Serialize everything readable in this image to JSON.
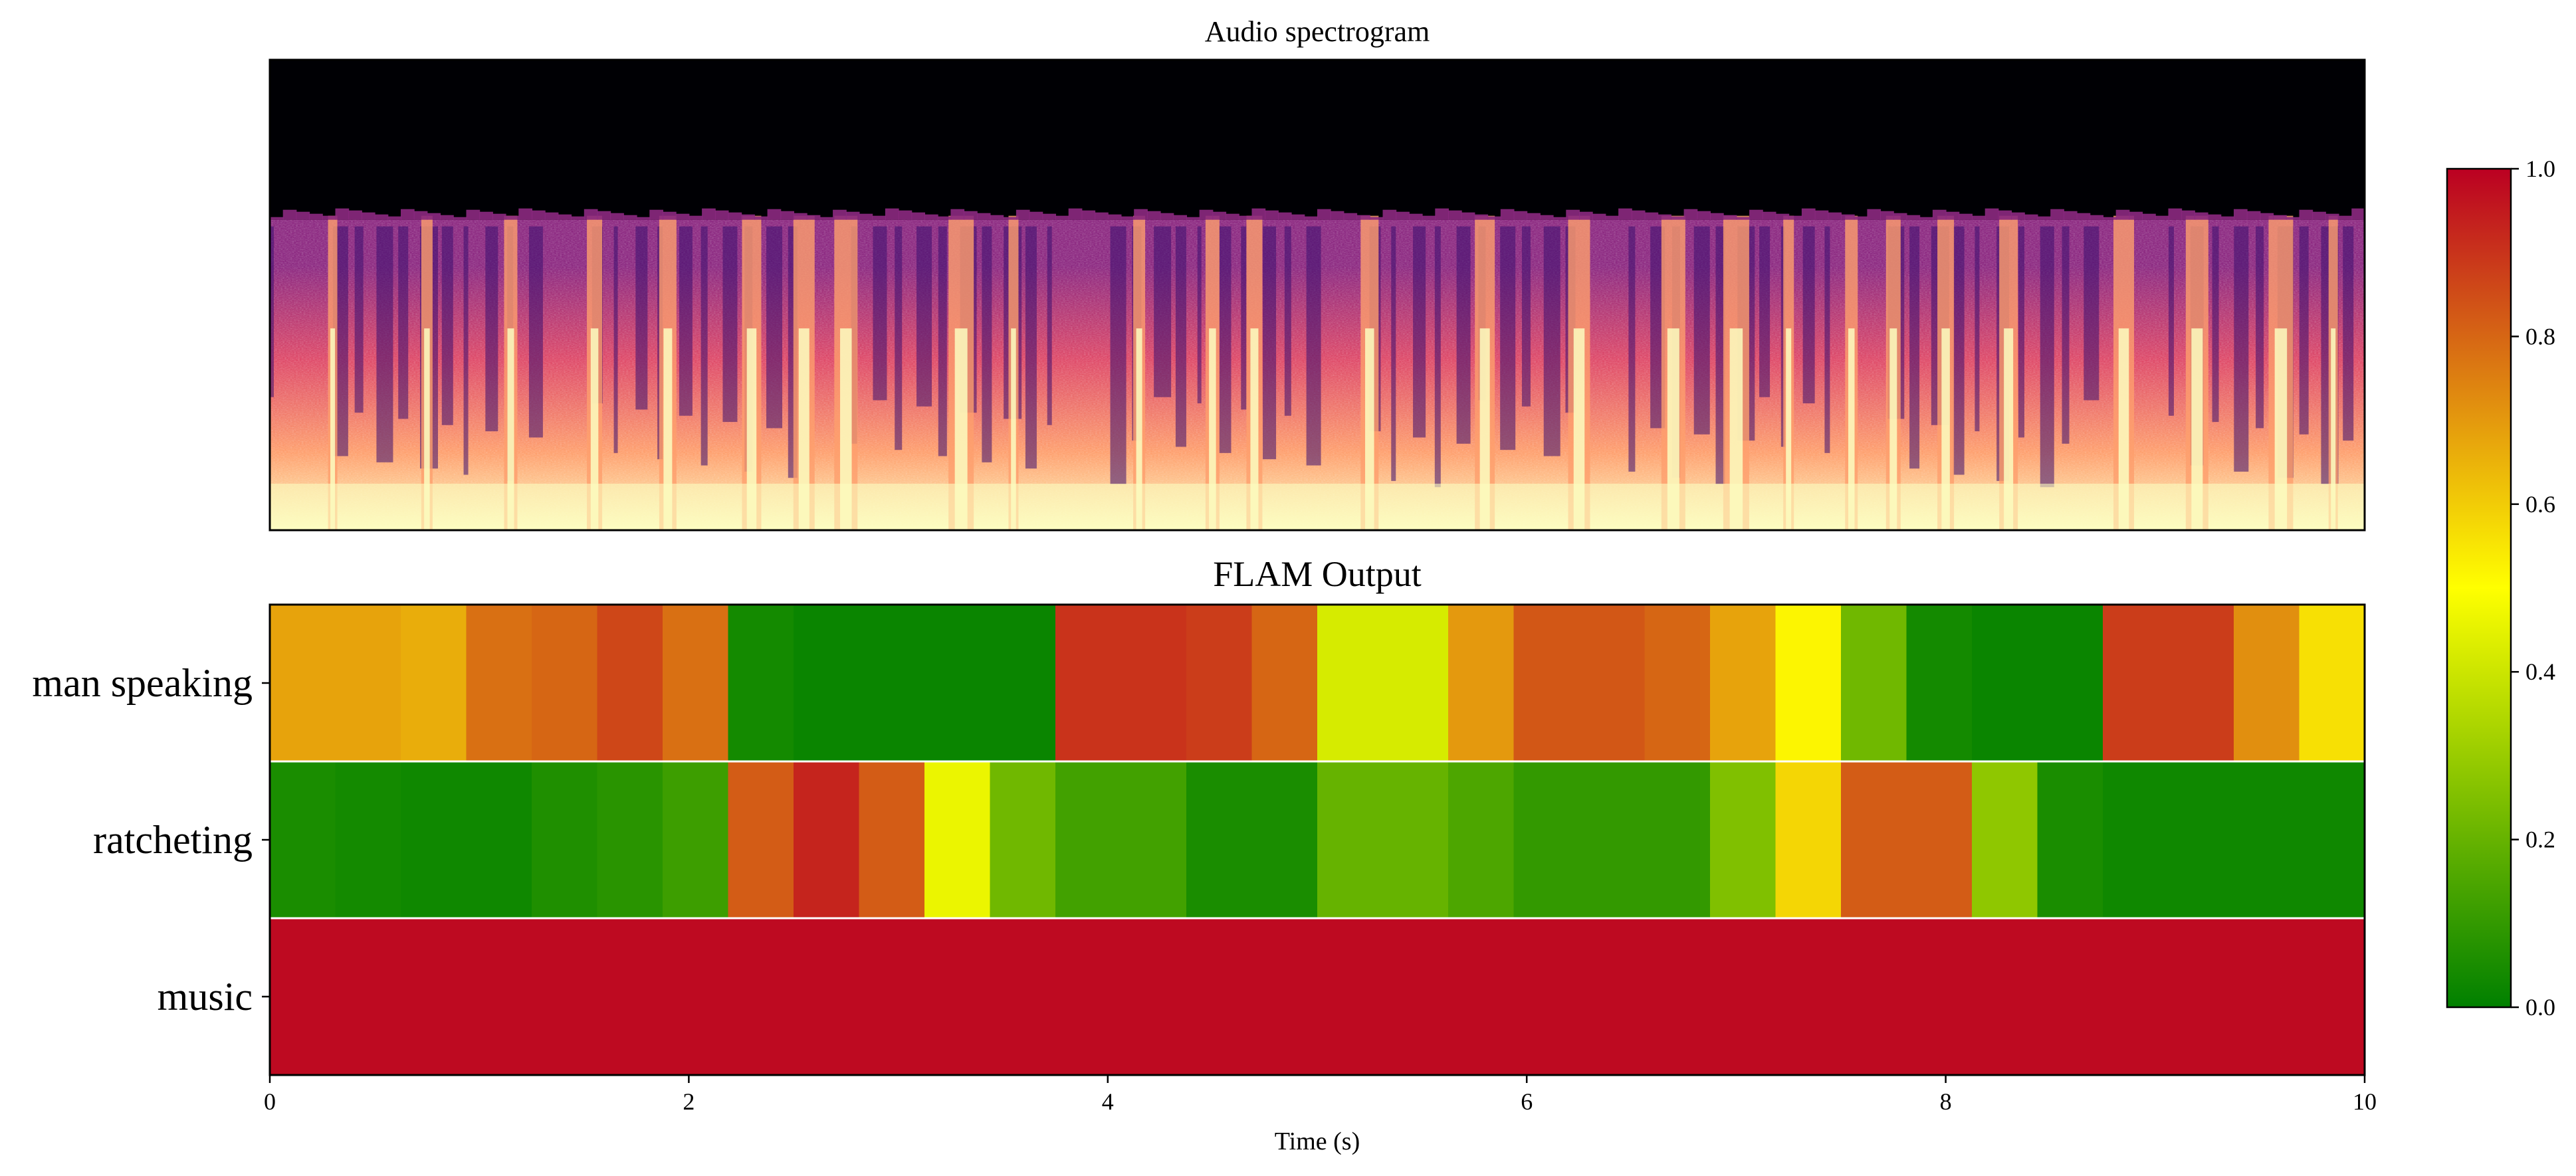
{
  "chart_data": [
    {
      "type": "heatmap",
      "panel": "spectrogram",
      "title": "Audio spectrogram",
      "note": "magma-colormap frequency-time image, no axes labels",
      "x": [
        0,
        10
      ],
      "burst_times_s": [
        0.3,
        0.75,
        1.15,
        1.55,
        1.9,
        2.3,
        2.55,
        2.75,
        3.3,
        3.55,
        4.15,
        4.5,
        4.7,
        5.25,
        5.8,
        6.25,
        6.7,
        7.0,
        7.25,
        7.55,
        7.75,
        8.0,
        8.3,
        8.85,
        9.2,
        9.6,
        9.85
      ],
      "colors": [
        "#000004",
        "#3b0f70",
        "#8c2981",
        "#de4968",
        "#fe9f6d",
        "#fcfdbf"
      ]
    },
    {
      "type": "heatmap",
      "panel": "flam",
      "title": "FLAM Output",
      "xlabel": "Time (s)",
      "x_ticks": [
        "0",
        "2",
        "4",
        "6",
        "8",
        "10"
      ],
      "xlim": [
        0,
        10
      ],
      "rows": [
        "man speaking",
        "ratcheting",
        "music"
      ],
      "frame_starts_s": [
        0,
        0.3125,
        0.625,
        0.9375,
        1.25,
        1.5625,
        1.875,
        2.1875,
        2.5,
        2.8125,
        3.125,
        3.4375,
        3.75,
        4.0625,
        4.375,
        4.6875,
        5.0,
        5.3125,
        5.625,
        5.9375,
        6.25,
        6.5625,
        6.875,
        7.1875,
        7.5,
        7.8125,
        8.125,
        8.4375,
        8.75,
        9.0625,
        9.375,
        9.6875
      ],
      "values": [
        [
          0.68,
          0.68,
          0.66,
          0.78,
          0.8,
          0.86,
          0.78,
          0.04,
          0.02,
          0.02,
          0.02,
          0.02,
          0.9,
          0.9,
          0.88,
          0.8,
          0.42,
          0.42,
          0.7,
          0.83,
          0.83,
          0.8,
          0.68,
          0.52,
          0.22,
          0.04,
          0.02,
          0.02,
          0.88,
          0.88,
          0.72,
          0.56
        ],
        [
          0.05,
          0.04,
          0.03,
          0.03,
          0.06,
          0.08,
          0.12,
          0.82,
          0.93,
          0.82,
          0.46,
          0.22,
          0.13,
          0.13,
          0.05,
          0.05,
          0.2,
          0.2,
          0.15,
          0.1,
          0.1,
          0.1,
          0.25,
          0.58,
          0.82,
          0.82,
          0.28,
          0.05,
          0.03,
          0.03,
          0.03,
          0.03
        ],
        [
          0.98,
          0.98,
          0.98,
          0.98,
          0.98,
          0.98,
          0.98,
          0.98,
          0.98,
          0.98,
          0.98,
          0.98,
          0.98,
          0.98,
          0.98,
          0.98,
          0.98,
          0.98,
          0.98,
          0.98,
          0.98,
          0.98,
          0.98,
          0.98,
          0.98,
          0.98,
          0.98,
          0.98,
          0.98,
          0.98,
          0.98,
          0.98
        ]
      ]
    },
    {
      "type": "colorbar",
      "vmin": 0.0,
      "vmax": 1.0,
      "ticks": [
        "0.0",
        "0.2",
        "0.4",
        "0.6",
        "0.8",
        "1.0"
      ],
      "colors": [
        "#008000",
        "#FFFF00",
        "#BB0022"
      ]
    }
  ]
}
